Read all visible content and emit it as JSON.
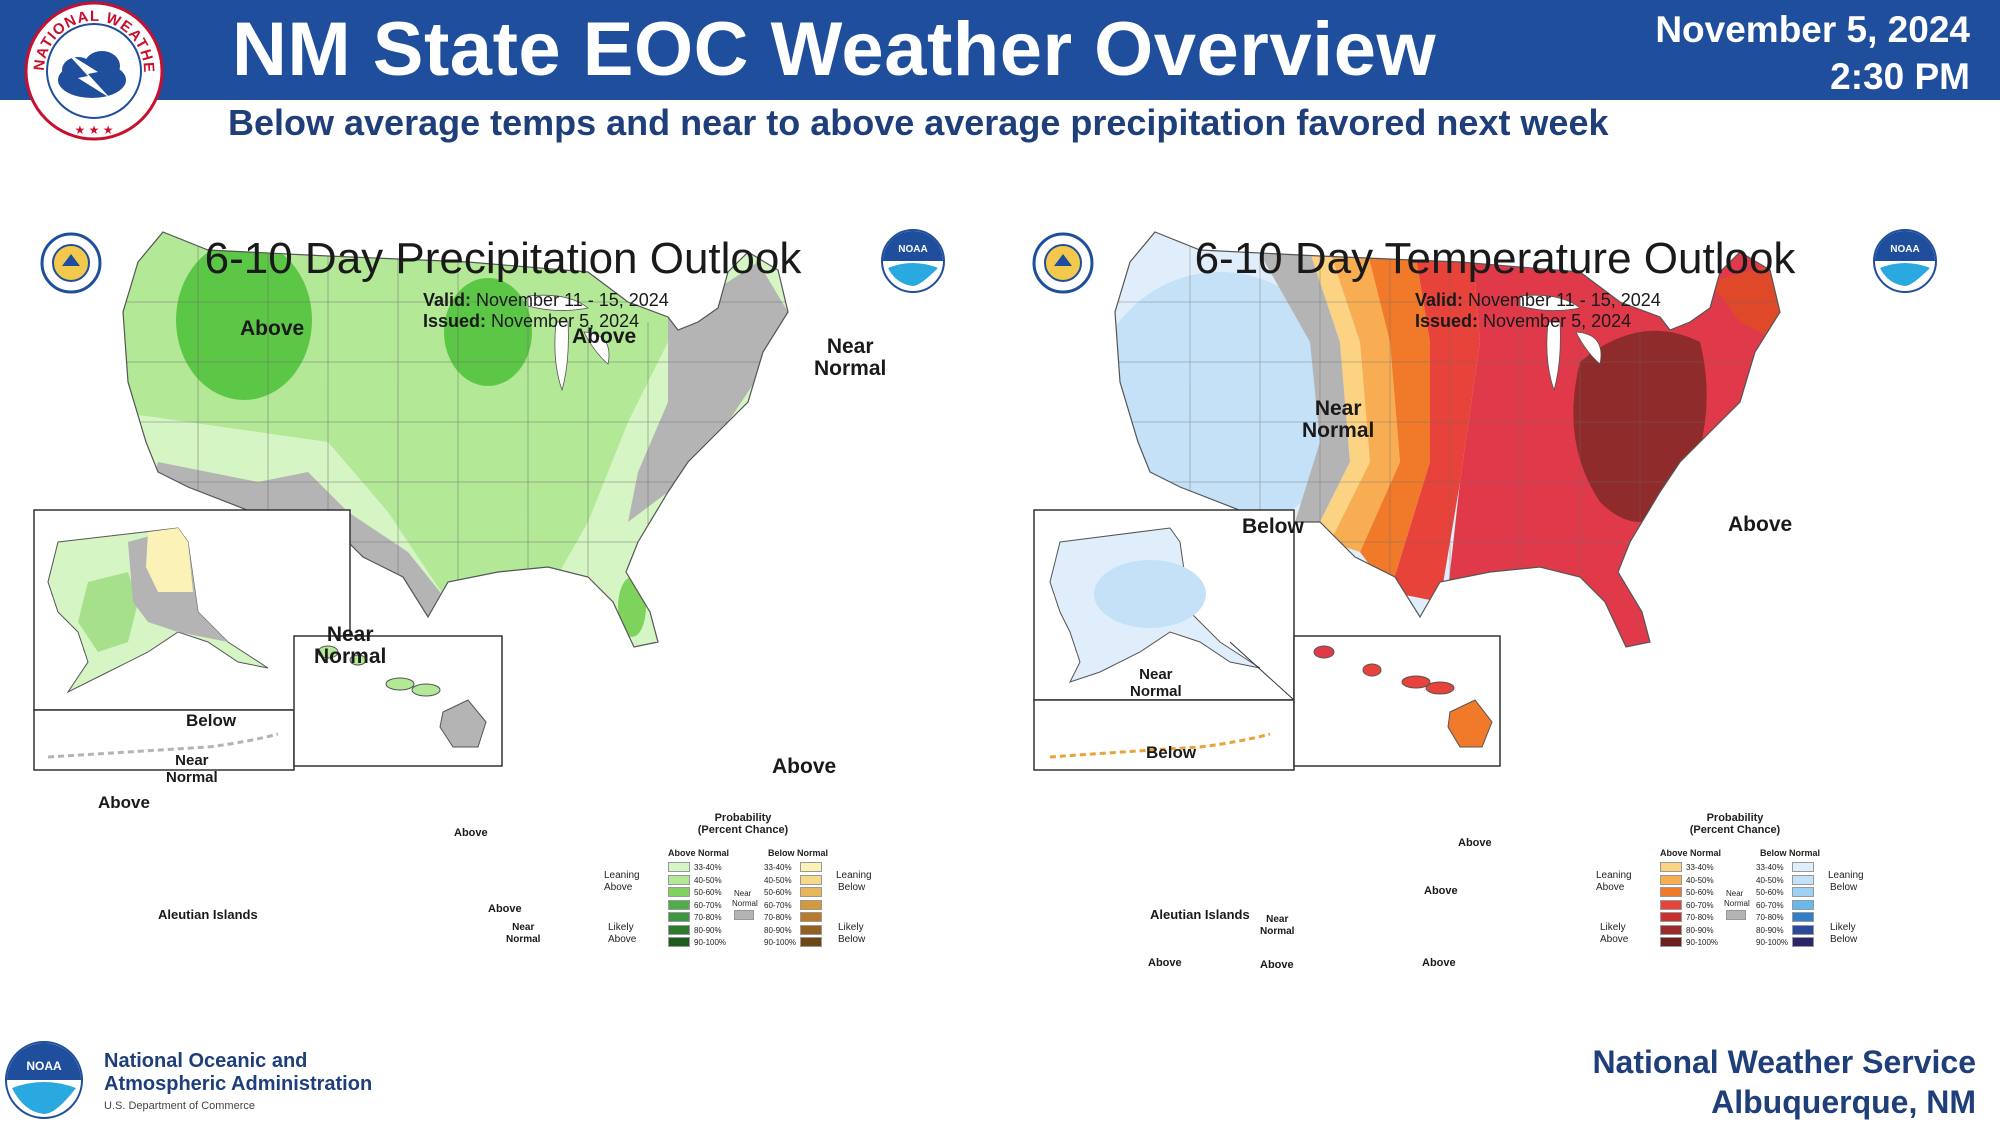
{
  "header": {
    "title": "NM State EOC Weather Overview",
    "date": "November 5, 2024",
    "time": "2:30 PM",
    "subtitle": "Below average temps and near to above average precipitation favored next week",
    "logo_ring_text": "NATIONAL WEATHER SERVICE"
  },
  "colors": {
    "banner": "#1f4e9d",
    "navy_text": "#1f3f7a",
    "near_normal": "#b4b4b4"
  },
  "precip": {
    "title": "6-10 Day Precipitation Outlook",
    "valid_label": "Valid:",
    "valid": "November 11 - 15, 2024",
    "issued_label": "Issued:",
    "issued": "November 5, 2024",
    "labels": {
      "above_nw": "Above",
      "above_lakes": "Above",
      "near_ne_1": "Near",
      "near_ne_2": "Normal",
      "near_sw_1": "Near",
      "near_sw_2": "Normal",
      "above_fl": "Above",
      "ak_below": "Below",
      "ak_near_1": "Near",
      "ak_near_2": "Normal",
      "ak_above": "Above",
      "aleutian": "Aleutian Islands",
      "hi_above_1": "Above",
      "hi_above_2": "Above",
      "hi_near_1": "Near",
      "hi_near_2": "Normal"
    },
    "legend": {
      "title1": "Probability",
      "title2": "(Percent Chance)",
      "head_left": "Above Normal",
      "head_right": "Below Normal",
      "leaning_left_1": "Leaning",
      "leaning_left_2": "Above",
      "likely_left_1": "Likely",
      "likely_left_2": "Above",
      "leaning_right_1": "Leaning",
      "leaning_right_2": "Below",
      "likely_right_1": "Likely",
      "likely_right_2": "Below",
      "near_1": "Near",
      "near_2": "Normal",
      "ranges": [
        "33-40%",
        "40-50%",
        "50-60%",
        "60-70%",
        "70-80%",
        "80-90%",
        "90-100%"
      ],
      "left_colors": [
        "#d6f5c4",
        "#b2e896",
        "#7ed35c",
        "#4fae49",
        "#3e9640",
        "#2f7a2f",
        "#1f5a1f"
      ],
      "right_colors": [
        "#fbf2b8",
        "#f7d98a",
        "#e6b659",
        "#d39a3d",
        "#b77b2b",
        "#94601f",
        "#6e4515"
      ]
    }
  },
  "temp": {
    "title": "6-10 Day Temperature Outlook",
    "valid_label": "Valid:",
    "valid": "November 11 - 15, 2024",
    "issued_label": "Issued:",
    "issued": "November 5, 2024",
    "labels": {
      "near_1": "Near",
      "near_2": "Normal",
      "below_w": "Below",
      "above_e": "Above",
      "ak_near_1": "Near",
      "ak_near_2": "Normal",
      "ak_below": "Below",
      "aleutian": "Aleutian Islands",
      "al_near_1": "Near",
      "al_near_2": "Normal",
      "al_above_1": "Above",
      "al_above_2": "Above",
      "hi_above_1": "Above",
      "hi_above_2": "Above",
      "hi_above_3": "Above"
    },
    "legend": {
      "title1": "Probability",
      "title2": "(Percent Chance)",
      "head_left": "Above Normal",
      "head_right": "Below Normal",
      "leaning_left_1": "Leaning",
      "leaning_left_2": "Above",
      "likely_left_1": "Likely",
      "likely_left_2": "Above",
      "leaning_right_1": "Leaning",
      "leaning_right_2": "Below",
      "likely_right_1": "Likely",
      "likely_right_2": "Below",
      "near_1": "Near",
      "near_2": "Normal",
      "ranges": [
        "33-40%",
        "40-50%",
        "50-60%",
        "60-70%",
        "70-80%",
        "80-90%",
        "90-100%"
      ],
      "left_colors": [
        "#fcd382",
        "#f8ad52",
        "#f07a2a",
        "#e8433a",
        "#c9302e",
        "#9b2a2a",
        "#6b1f1f"
      ],
      "right_colors": [
        "#e0eefb",
        "#c4e1f7",
        "#9ed1f5",
        "#67b8ee",
        "#2f7fc9",
        "#2b4a9b",
        "#2b2466"
      ]
    }
  },
  "footer": {
    "noaa_line1": "National Oceanic and",
    "noaa_line2": "Atmospheric Administration",
    "noaa_dept": "U.S. Department of Commerce",
    "nws_line1": "National Weather Service",
    "nws_line2": "Albuquerque, NM",
    "noaa_logo_text": "NOAA"
  }
}
